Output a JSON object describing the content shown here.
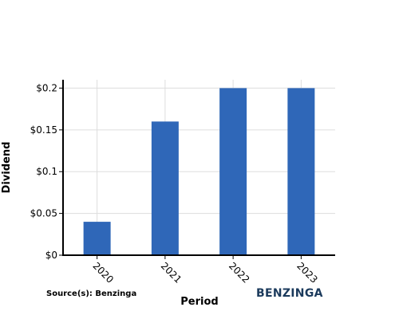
{
  "chart_data": {
    "type": "bar",
    "categories": [
      "2020",
      "2021",
      "2022",
      "2023"
    ],
    "values": [
      0.04,
      0.16,
      0.2,
      0.2
    ],
    "xlabel": "Period",
    "ylabel": "Dividend",
    "ylim": [
      0,
      0.21
    ],
    "yticks": [
      0,
      0.05,
      0.1,
      0.15,
      0.2
    ],
    "ytick_labels": [
      "$0",
      "$0.05",
      "$0.1",
      "$0.15",
      "$0.2"
    ],
    "grid": true,
    "bar_color": "#2f67b8"
  },
  "source_text": "Source(s): Benzinga",
  "brand_logo": "BENZINGA"
}
